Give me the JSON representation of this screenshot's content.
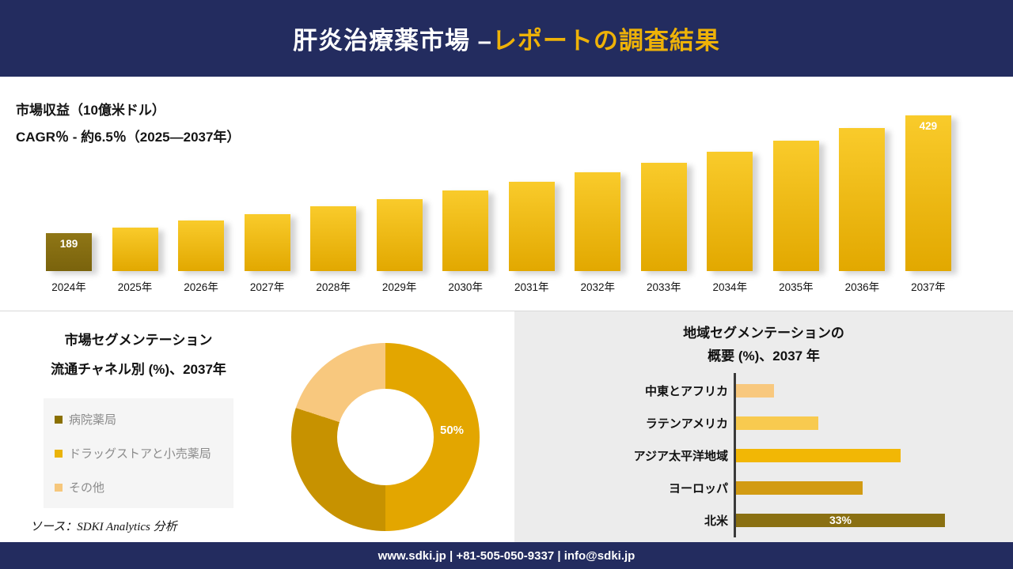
{
  "header": {
    "title_white": "肝炎治療薬市場 –",
    "title_gold": "レポートの調査結果"
  },
  "source": "ソース：SDKI Analytics 分析",
  "footer": {
    "text": "www.sdki.jp | +81-505-050-9337 | info@sdki.jp"
  },
  "colors": {
    "navy": "#232c5f",
    "accent_gold": "#eeb208",
    "bar_gold_top": "#f9cb2b",
    "bar_gold_bottom": "#e2a800",
    "bar_dark": "#8f7616"
  },
  "chart_data": [
    {
      "type": "bar",
      "title": "市場収益（10億米ドル）",
      "subtitle": "CAGR％ - 約6.5％（2025―2037年）",
      "categories": [
        "2024年",
        "2025年",
        "2026年",
        "2027年",
        "2028年",
        "2029年",
        "2030年",
        "2031年",
        "2032年",
        "2033年",
        "2034年",
        "2035年",
        "2036年",
        "2037年"
      ],
      "values": [
        189,
        201,
        214,
        228,
        243,
        259,
        276,
        294,
        313,
        333,
        355,
        378,
        403,
        429
      ],
      "value_labels_visible": [
        0,
        13
      ],
      "ylabel": "市場収益（10億米ドル）",
      "grid": false,
      "legend": "none"
    },
    {
      "type": "pie",
      "title_line1": "市場セグメンテーション",
      "title_line2": "流通チャネル別 (%)、2037年",
      "categories": [
        "病院薬局",
        "ドラッグストアと小売薬局",
        "その他"
      ],
      "values": [
        50,
        30,
        20
      ],
      "colors": [
        "#e3a600",
        "#c79200",
        "#f8c87e"
      ],
      "legend_colors": [
        "#8a7000",
        "#eab308",
        "#f6c77c"
      ],
      "center_label": "50%",
      "legend_position": "left"
    },
    {
      "type": "bar",
      "orientation": "horizontal",
      "title_line1": "地域セグメンテーションの",
      "title_line2": "概要 (%)、2037 年",
      "categories": [
        "中東とアフリカ",
        "ラテンアメリカ",
        "アジア太平洋地域",
        "ヨーロッパ",
        "北米"
      ],
      "values": [
        6,
        13,
        26,
        20,
        33
      ],
      "colors": [
        "#f8c87e",
        "#f8ca4f",
        "#f2b705",
        "#d29b13",
        "#8a7012"
      ],
      "bar_label": "33%",
      "labeled_index": 4,
      "grid": false
    }
  ]
}
